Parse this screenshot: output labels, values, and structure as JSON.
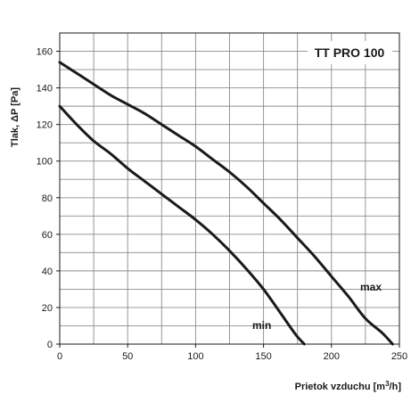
{
  "chart_data": {
    "type": "line",
    "title": "TT PRO 100",
    "xlabel": "Prietok vzduchu  [m³/h]",
    "ylabel": "Tlak, ΔP [Pa]",
    "xlim": [
      0,
      250
    ],
    "ylim": [
      0,
      170
    ],
    "x_ticks": [
      0,
      50,
      100,
      150,
      200,
      250
    ],
    "y_ticks": [
      0,
      20,
      40,
      60,
      80,
      100,
      120,
      140,
      160
    ],
    "grid": true,
    "legend": "none",
    "line_color": "#1a1a1a",
    "grid_color": "#8c8c8c",
    "series": [
      {
        "name": "max",
        "x": [
          0,
          12.5,
          25,
          37.5,
          50,
          62.5,
          75,
          87.5,
          100,
          112.5,
          125,
          137.5,
          150,
          162.5,
          175,
          187.5,
          200,
          212.5,
          225,
          237.5,
          245
        ],
        "y": [
          154,
          148,
          142,
          136,
          131,
          126,
          120,
          114,
          108,
          101,
          94,
          86,
          77,
          68,
          58,
          48,
          37,
          26,
          14,
          6,
          0
        ]
      },
      {
        "name": "min",
        "x": [
          0,
          12.5,
          25,
          37.5,
          50,
          62.5,
          75,
          87.5,
          100,
          112.5,
          125,
          137.5,
          150,
          162.5,
          170,
          175,
          180
        ],
        "y": [
          130,
          120,
          111,
          104,
          96,
          89,
          82,
          75,
          68,
          60,
          51,
          41,
          30,
          17,
          9,
          4,
          0
        ]
      }
    ]
  }
}
